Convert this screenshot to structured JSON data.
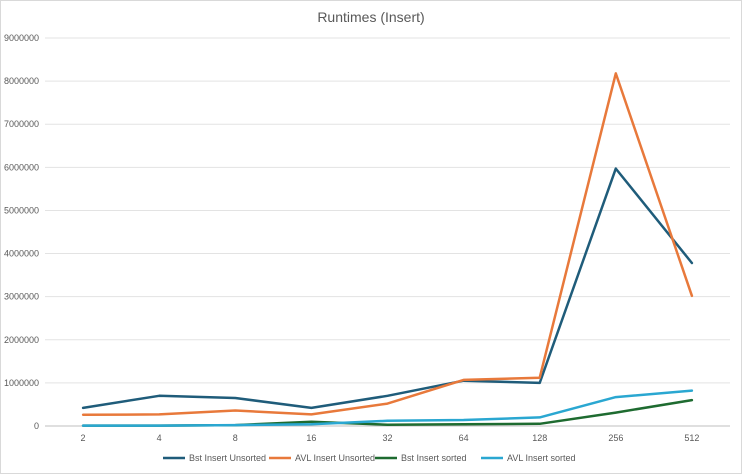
{
  "chart_data": {
    "type": "line",
    "title": "Runtimes (Insert)",
    "xlabel": "",
    "ylabel": "",
    "categories": [
      "2",
      "4",
      "8",
      "16",
      "32",
      "64",
      "128",
      "256",
      "512"
    ],
    "ylim": [
      0,
      9000000
    ],
    "yticks": [
      0,
      1000000,
      2000000,
      3000000,
      4000000,
      5000000,
      6000000,
      7000000,
      8000000,
      9000000
    ],
    "ytick_labels": [
      "0",
      "1000000",
      "2000000",
      "3000000",
      "4000000",
      "5000000",
      "6000000",
      "7000000",
      "8000000",
      "9000000"
    ],
    "grid": "horizontal",
    "legend_position": "bottom",
    "series": [
      {
        "name": "Bst Insert Unsorted",
        "color": "#1f5c7a",
        "values": [
          420000,
          700000,
          650000,
          420000,
          700000,
          1050000,
          1000000,
          5970000,
          3780000
        ]
      },
      {
        "name": "AVL Insert Unsorted",
        "color": "#e8793b",
        "values": [
          260000,
          270000,
          360000,
          270000,
          520000,
          1070000,
          1120000,
          8180000,
          3020000
        ]
      },
      {
        "name": "Bst Insert sorted",
        "color": "#1e6b30",
        "values": [
          10000,
          10000,
          20000,
          100000,
          30000,
          40000,
          50000,
          310000,
          600000
        ]
      },
      {
        "name": "AVL Insert sorted",
        "color": "#2aa7d1",
        "values": [
          10000,
          10000,
          20000,
          40000,
          120000,
          140000,
          200000,
          670000,
          820000
        ]
      }
    ]
  }
}
